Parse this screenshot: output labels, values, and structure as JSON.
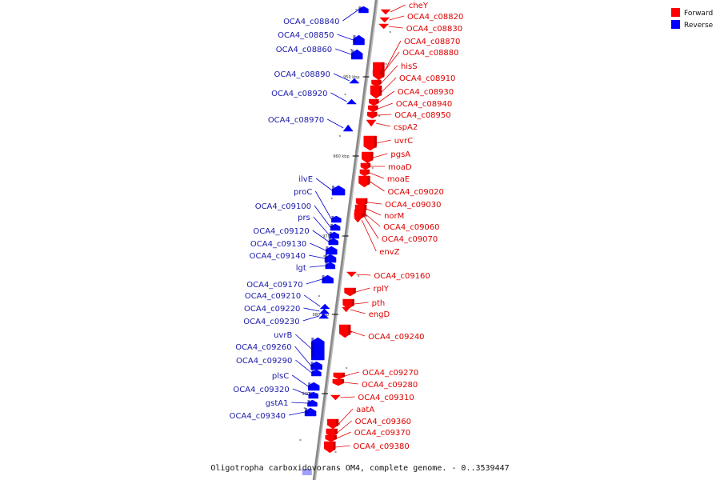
{
  "caption": "Oligotropha carboxidovorans OM4, complete genome. - 0..3539447",
  "legend": [
    {
      "label": "Forward",
      "color": "#ff0000"
    },
    {
      "label": "Reverse",
      "color": "#0000ff"
    }
  ],
  "ticks": [
    "950 kbp",
    "960 kbp",
    "970 kbp",
    "980 kbp",
    "990 kbp"
  ],
  "forward_genes": [
    "cheY",
    "OCA4_c08820",
    "OCA4_c08830",
    "OCA4_c08870",
    "OCA4_c08880",
    "hisS",
    "OCA4_c08910",
    "OCA4_c08930",
    "OCA4_c08940",
    "OCA4_c08950",
    "cspA2",
    "uvrC",
    "pgsA",
    "moaD",
    "moaE",
    "OCA4_c09020",
    "OCA4_c09030",
    "norM",
    "OCA4_c09060",
    "OCA4_c09070",
    "envZ",
    "OCA4_c09160",
    "rplY",
    "pth",
    "engD",
    "OCA4_c09240",
    "OCA4_c09270",
    "OCA4_c09280",
    "OCA4_c09310",
    "aatA",
    "OCA4_c09360",
    "OCA4_c09370",
    "OCA4_c09380"
  ],
  "reverse_genes": [
    "OCA4_c08840",
    "OCA4_c08850",
    "OCA4_c08860",
    "OCA4_c08890",
    "OCA4_c08920",
    "OCA4_c08970",
    "ilvE",
    "proC",
    "OCA4_c09100",
    "prs",
    "OCA4_c09120",
    "OCA4_c09130",
    "OCA4_c09140",
    "lgt",
    "OCA4_c09170",
    "OCA4_c09210",
    "OCA4_c09220",
    "OCA4_c09230",
    "uvrB",
    "OCA4_c09260",
    "OCA4_c09290",
    "plsC",
    "OCA4_c09320",
    "gstA1",
    "OCA4_c09340"
  ],
  "colors": {
    "forward": "#ff0000",
    "reverse": "#0000ff",
    "forward_text": "#dd0000",
    "reverse_text": "#1a1aa8",
    "axis": "#888888"
  }
}
